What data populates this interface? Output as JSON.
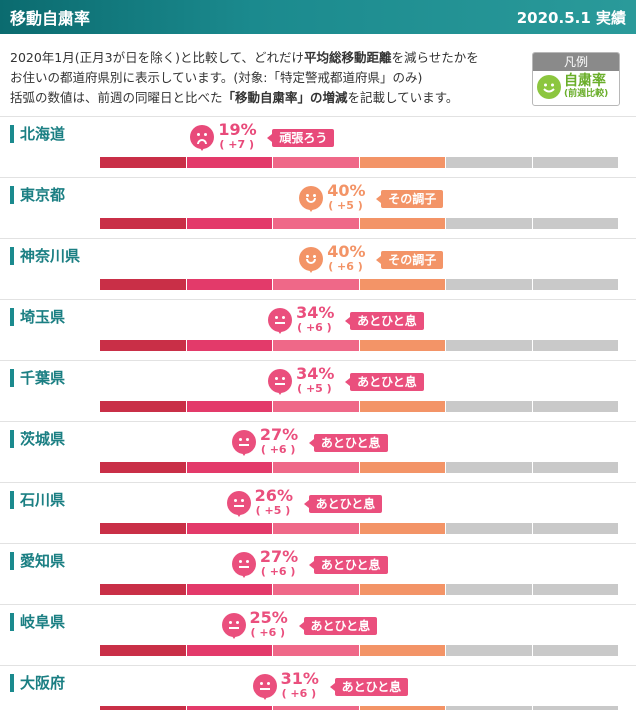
{
  "header": {
    "title": "移動自粛率",
    "date": "2020.5.1 実績"
  },
  "description": {
    "line1_a": "2020年1月(正月3が日を除く)と比較して、どれだけ",
    "line1_b": "平均総移動距離",
    "line1_c": "を減らせたかを",
    "line2": "お住いの都道府県別に表示しています。(対象:「特定警戒都道府県」のみ)",
    "line3_a": "括弧の数値は、前週の同曜日と比べた",
    "line3_b": "「移動自粛率」の増減",
    "line3_c": "を記載しています。"
  },
  "legend": {
    "header": "凡例",
    "title": "自粛率",
    "subtitle": "(前週比較)",
    "icon": "smile-face-icon",
    "color": "#8cc63f"
  },
  "colors": {
    "sad": "#e84a7a",
    "neutral": "#ea4f7d",
    "smile": "#f39467",
    "bar_bg": "#c9c9c9"
  },
  "bar_segments": [
    {
      "color": "#c92f47"
    },
    {
      "color": "#e33a6a"
    },
    {
      "color": "#ef6888"
    },
    {
      "color": "#f39467"
    },
    {
      "color": "#c9c9c9"
    },
    {
      "color": "#c9c9c9"
    }
  ],
  "rows": [
    {
      "name": "北海道",
      "pct": "19%",
      "delta": "( +7 )",
      "message": "頑張ろう",
      "mood": "sad",
      "value": 19
    },
    {
      "name": "東京都",
      "pct": "40%",
      "delta": "( +5 )",
      "message": "その調子",
      "mood": "smile",
      "value": 40
    },
    {
      "name": "神奈川県",
      "pct": "40%",
      "delta": "( +6 )",
      "message": "その調子",
      "mood": "smile",
      "value": 40
    },
    {
      "name": "埼玉県",
      "pct": "34%",
      "delta": "( +6 )",
      "message": "あとひと息",
      "mood": "neutral",
      "value": 34
    },
    {
      "name": "千葉県",
      "pct": "34%",
      "delta": "( +5 )",
      "message": "あとひと息",
      "mood": "neutral",
      "value": 34
    },
    {
      "name": "茨城県",
      "pct": "27%",
      "delta": "( +6 )",
      "message": "あとひと息",
      "mood": "neutral",
      "value": 27
    },
    {
      "name": "石川県",
      "pct": "26%",
      "delta": "( +5 )",
      "message": "あとひと息",
      "mood": "neutral",
      "value": 26
    },
    {
      "name": "愛知県",
      "pct": "27%",
      "delta": "( +6 )",
      "message": "あとひと息",
      "mood": "neutral",
      "value": 27
    },
    {
      "name": "岐阜県",
      "pct": "25%",
      "delta": "( +6 )",
      "message": "あとひと息",
      "mood": "neutral",
      "value": 25
    },
    {
      "name": "大阪府",
      "pct": "31%",
      "delta": "( +6 )",
      "message": "あとひと息",
      "mood": "neutral",
      "value": 31
    }
  ]
}
